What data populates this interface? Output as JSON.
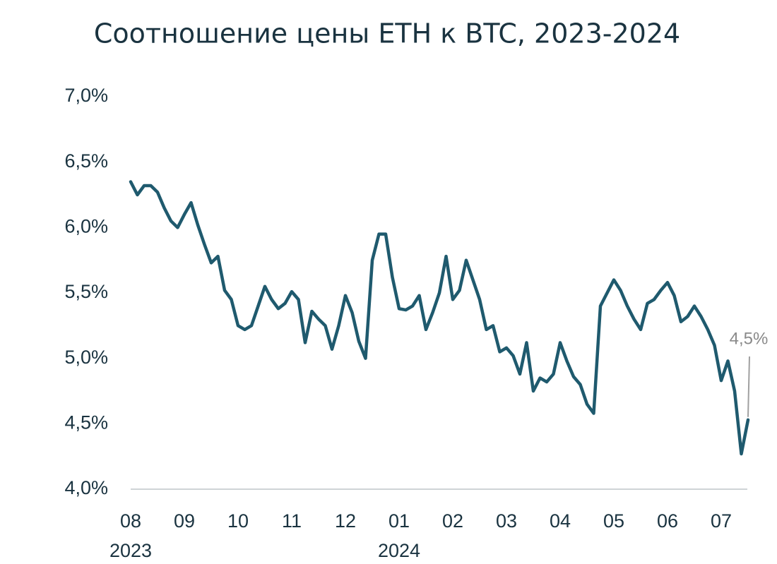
{
  "chart_data": {
    "type": "line",
    "title": "Соотношение цены ETH к BTC, 2023-2024",
    "categories": [
      "08",
      null,
      null,
      null,
      null,
      null,
      null,
      null,
      "09",
      null,
      null,
      null,
      null,
      null,
      null,
      null,
      "10",
      null,
      null,
      null,
      null,
      null,
      null,
      null,
      "11",
      null,
      null,
      null,
      null,
      null,
      null,
      null,
      "12",
      null,
      null,
      null,
      null,
      null,
      null,
      null,
      "01",
      null,
      null,
      null,
      null,
      null,
      null,
      null,
      "02",
      null,
      null,
      null,
      null,
      null,
      null,
      null,
      "03",
      null,
      null,
      null,
      null,
      null,
      null,
      null,
      "04",
      null,
      null,
      null,
      null,
      null,
      null,
      null,
      "05",
      null,
      null,
      null,
      null,
      null,
      null,
      null,
      "06",
      null,
      null,
      null,
      null,
      null,
      null,
      null,
      "07",
      null,
      null,
      null,
      null
    ],
    "year_labels": [
      "2023",
      null,
      null,
      null,
      null,
      null,
      null,
      null,
      null,
      null,
      null,
      null,
      null,
      null,
      null,
      null,
      null,
      null,
      null,
      null,
      null,
      null,
      null,
      null,
      null,
      null,
      null,
      null,
      null,
      null,
      null,
      null,
      null,
      null,
      null,
      null,
      null,
      null,
      null,
      null,
      "2024",
      null,
      null,
      null,
      null,
      null,
      null,
      null,
      null,
      null,
      null,
      null,
      null,
      null,
      null,
      null,
      null,
      null,
      null,
      null,
      null,
      null,
      null,
      null,
      null,
      null,
      null,
      null,
      null,
      null,
      null,
      null,
      null,
      null,
      null,
      null,
      null,
      null,
      null,
      null,
      null,
      null,
      null,
      null,
      null,
      null,
      null,
      null,
      null,
      null,
      null,
      null,
      null
    ],
    "series": [
      {
        "color": "#1f5a6e",
        "values": [
          6.35,
          6.25,
          6.32,
          6.32,
          6.27,
          6.15,
          6.05,
          6.0,
          6.1,
          6.19,
          6.02,
          5.87,
          5.73,
          5.78,
          5.52,
          5.45,
          5.25,
          5.22,
          5.25,
          5.4,
          5.55,
          5.45,
          5.38,
          5.42,
          5.51,
          5.45,
          5.12,
          5.36,
          5.3,
          5.25,
          5.07,
          5.25,
          5.48,
          5.35,
          5.13,
          5.0,
          5.75,
          5.95,
          5.95,
          5.62,
          5.38,
          5.37,
          5.4,
          5.48,
          5.22,
          5.35,
          5.5,
          5.78,
          5.45,
          5.52,
          5.75,
          5.6,
          5.45,
          5.22,
          5.25,
          5.05,
          5.08,
          5.02,
          4.88,
          5.12,
          4.75,
          4.85,
          4.82,
          4.88,
          5.12,
          4.98,
          4.86,
          4.8,
          4.65,
          4.58,
          5.4,
          5.5,
          5.6,
          5.52,
          5.4,
          5.3,
          5.22,
          5.42,
          5.45,
          5.52,
          5.58,
          5.48,
          5.28,
          5.32,
          5.4,
          5.32,
          5.22,
          5.1,
          4.83,
          4.98,
          4.75,
          4.27,
          4.53
        ],
        "value_labels": [
          null,
          null,
          null,
          null,
          null,
          null,
          null,
          null,
          null,
          null,
          null,
          null,
          null,
          null,
          null,
          null,
          null,
          null,
          null,
          null,
          null,
          null,
          null,
          null,
          null,
          null,
          null,
          null,
          null,
          null,
          null,
          null,
          null,
          null,
          null,
          null,
          null,
          null,
          null,
          null,
          null,
          null,
          null,
          null,
          null,
          null,
          null,
          null,
          null,
          null,
          null,
          null,
          null,
          null,
          null,
          null,
          null,
          null,
          null,
          null,
          null,
          null,
          null,
          null,
          null,
          null,
          null,
          null,
          null,
          null,
          null,
          null,
          null,
          null,
          null,
          null,
          null,
          null,
          null,
          null,
          null,
          null,
          null,
          null,
          null,
          null,
          null,
          null,
          null,
          null,
          null,
          null,
          "4,5%"
        ]
      }
    ],
    "ylim": [
      4.0,
      7.0
    ],
    "yticks": [
      {
        "value": 4.0,
        "label": "4,0%"
      },
      {
        "value": 4.5,
        "label": "4,5%"
      },
      {
        "value": 5.0,
        "label": "5,0%"
      },
      {
        "value": 5.5,
        "label": "5,5%"
      },
      {
        "value": 6.0,
        "label": "6,0%"
      },
      {
        "value": 6.5,
        "label": "6,5%"
      },
      {
        "value": 7.0,
        "label": "7,0%"
      }
    ],
    "grid": false
  }
}
